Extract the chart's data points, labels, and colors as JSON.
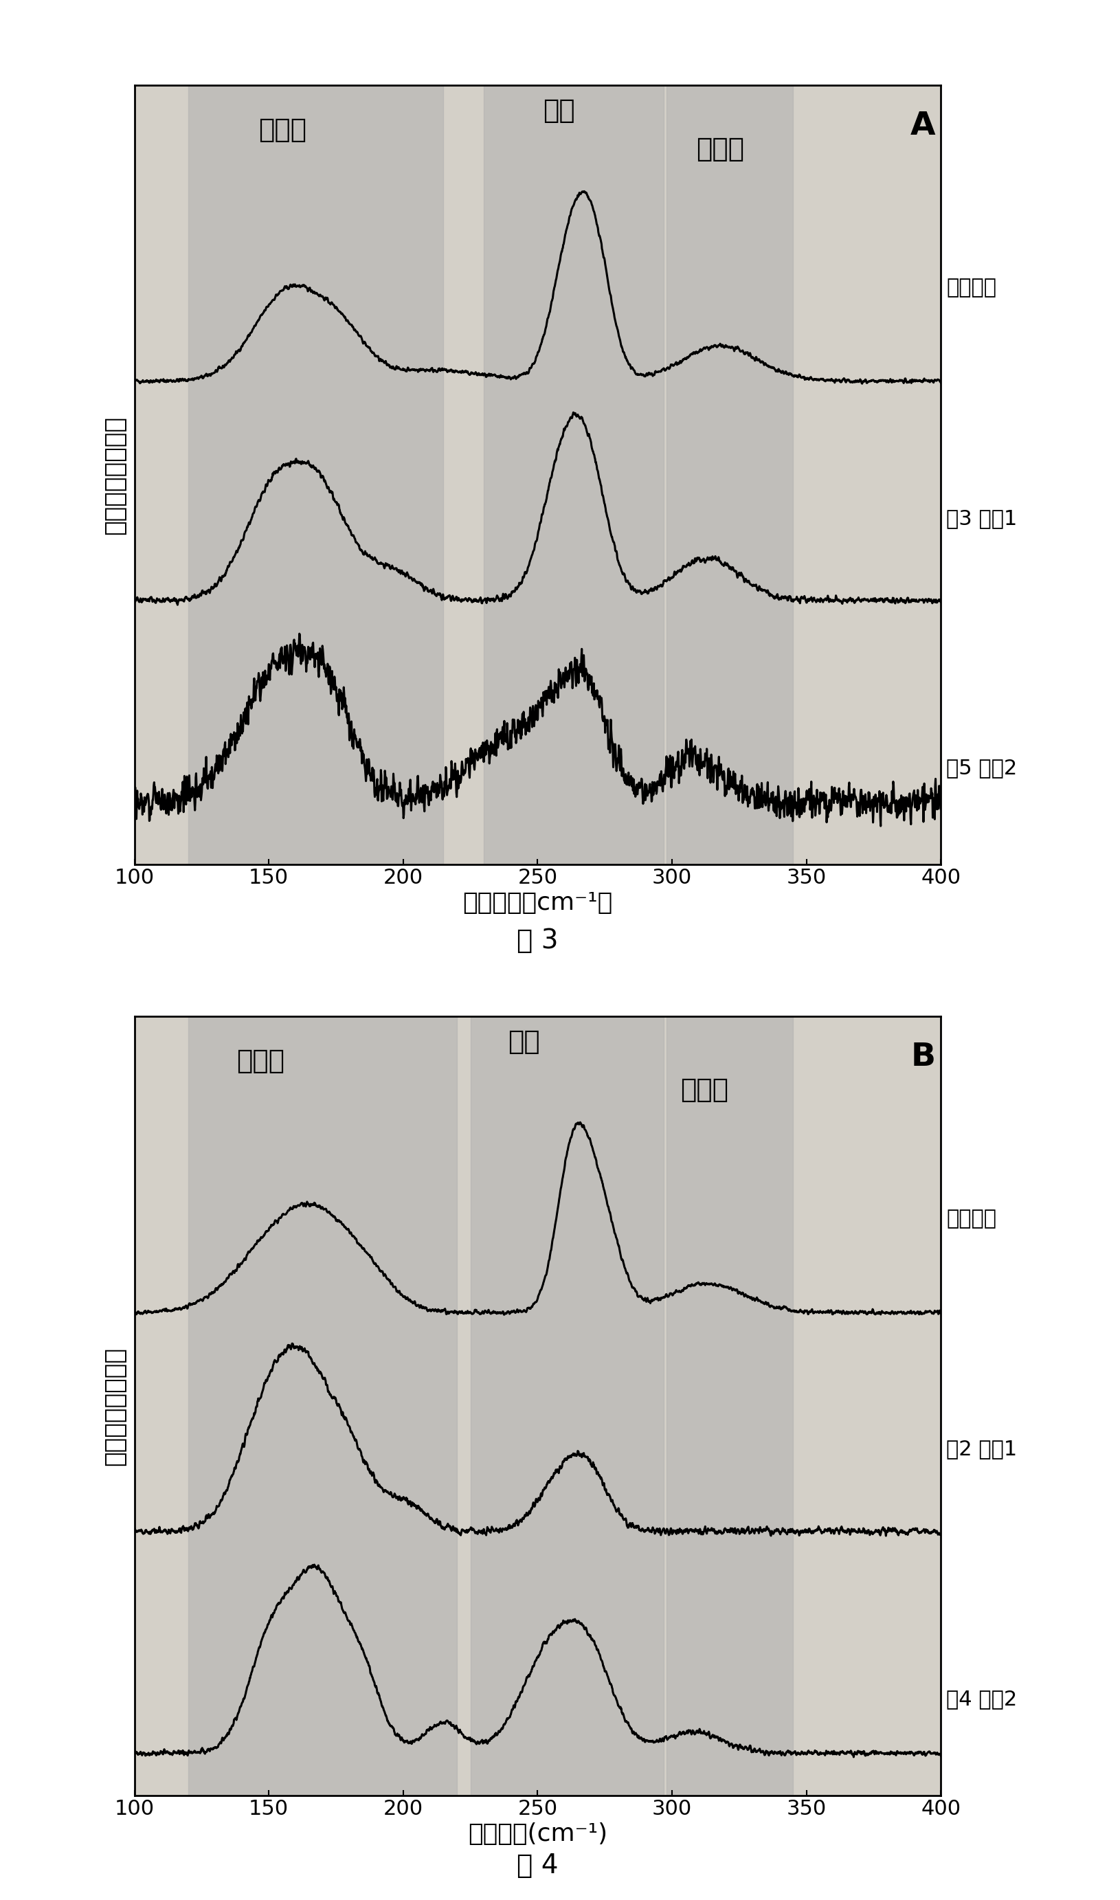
{
  "panel_A_label": "A",
  "panel_B_label": "B",
  "fig3_caption": "图 3",
  "fig4_caption": "图 4",
  "xlabel_A": "拉曼位移（cm⁻¹）",
  "xlabel_B": "拉曼位移(cm⁻¹)",
  "ylabel": "强度（任意单位）",
  "xmin": 100,
  "xmax": 400,
  "label_semi1_A": "半导体",
  "label_metal_A": "金属",
  "label_semi2_A": "半导体",
  "label_purified_A": "纯化后的",
  "label_A_sample1": "例3 样品1",
  "label_A_sample2": "例5 样品2",
  "label_semi1_B": "半导体",
  "label_metal_B": "金属",
  "label_semi2_B": "半导体",
  "label_purified_B": "纯化后的",
  "label_B_sample1": "例2 样品1",
  "label_B_sample2": "例4 样品2",
  "shade_regions_A": [
    {
      "xmin": 120,
      "xmax": 215,
      "color": "#b0b0b0",
      "alpha": 0.55
    },
    {
      "xmin": 230,
      "xmax": 297,
      "color": "#b0b0b0",
      "alpha": 0.55
    },
    {
      "xmin": 298,
      "xmax": 345,
      "color": "#b0b0b0",
      "alpha": 0.55
    }
  ],
  "shade_regions_B": [
    {
      "xmin": 120,
      "xmax": 220,
      "color": "#b0b0b0",
      "alpha": 0.55
    },
    {
      "xmin": 225,
      "xmax": 297,
      "color": "#b0b0b0",
      "alpha": 0.55
    },
    {
      "xmin": 298,
      "xmax": 345,
      "color": "#b0b0b0",
      "alpha": 0.55
    }
  ],
  "bg_color": "#d4d0c8",
  "line_color": "#000000",
  "tick_fontsize": 22,
  "label_fontsize": 26,
  "annotation_fontsize": 28,
  "panel_label_fontsize": 34,
  "caption_fontsize": 28,
  "trace_label_fontsize": 22
}
